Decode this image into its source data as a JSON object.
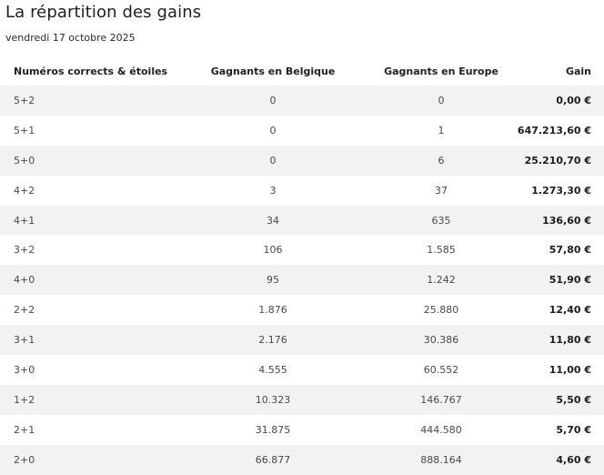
{
  "title": "La répartition des gains",
  "date": "vendredi 17 octobre 2025",
  "columns": [
    "Numéros corrects & étoiles",
    "Gagnants en Belgique",
    "Gagnants en Europe",
    "Gain"
  ],
  "rows": [
    {
      "combo": "5+2",
      "belgium": "0",
      "europe": "0",
      "gain": "0,00 €"
    },
    {
      "combo": "5+1",
      "belgium": "0",
      "europe": "1",
      "gain": "647.213,60 €"
    },
    {
      "combo": "5+0",
      "belgium": "0",
      "europe": "6",
      "gain": "25.210,70 €"
    },
    {
      "combo": "4+2",
      "belgium": "3",
      "europe": "37",
      "gain": "1.273,30 €"
    },
    {
      "combo": "4+1",
      "belgium": "34",
      "europe": "635",
      "gain": "136,60 €"
    },
    {
      "combo": "3+2",
      "belgium": "106",
      "europe": "1.585",
      "gain": "57,80 €"
    },
    {
      "combo": "4+0",
      "belgium": "95",
      "europe": "1.242",
      "gain": "51,90 €"
    },
    {
      "combo": "2+2",
      "belgium": "1.876",
      "europe": "25.880",
      "gain": "12,40 €"
    },
    {
      "combo": "3+1",
      "belgium": "2.176",
      "europe": "30.386",
      "gain": "11,80 €"
    },
    {
      "combo": "3+0",
      "belgium": "4.555",
      "europe": "60.552",
      "gain": "11,00 €"
    },
    {
      "combo": "1+2",
      "belgium": "10.323",
      "europe": "146.767",
      "gain": "5,50 €"
    },
    {
      "combo": "2+1",
      "belgium": "31.875",
      "europe": "444.580",
      "gain": "5,70 €"
    },
    {
      "combo": "2+0",
      "belgium": "66.877",
      "europe": "888.164",
      "gain": "4,60 €"
    }
  ]
}
